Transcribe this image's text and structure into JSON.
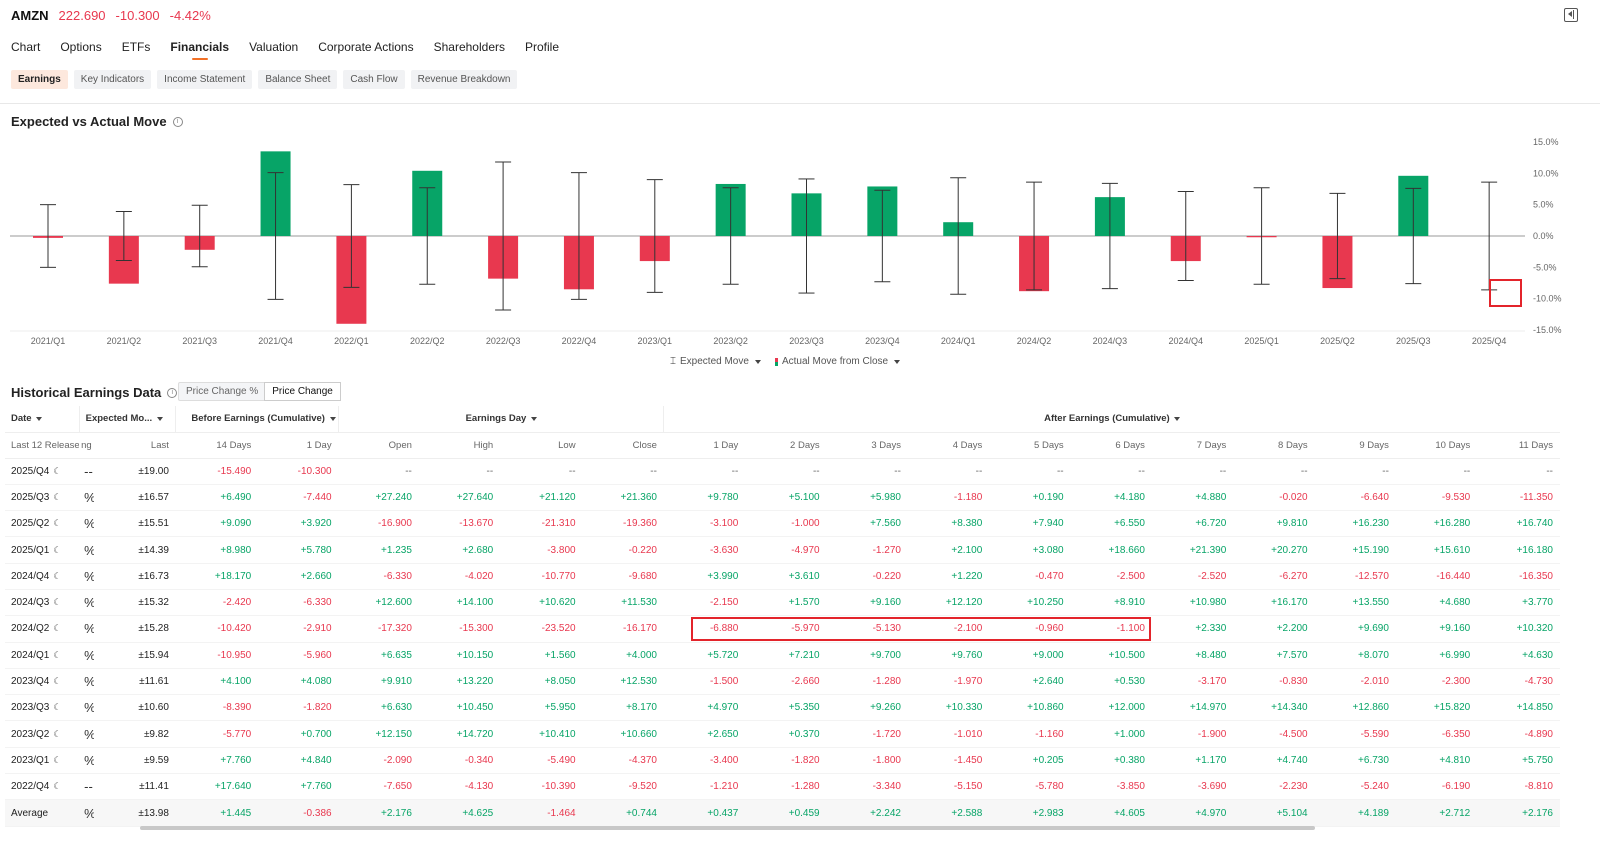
{
  "header": {
    "ticker": "AMZN",
    "price": "222.690",
    "change": "-10.300",
    "change_pct": "-4.42%"
  },
  "nav": {
    "tabs": [
      {
        "label": "Chart"
      },
      {
        "label": "Options"
      },
      {
        "label": "ETFs"
      },
      {
        "label": "Financials",
        "active": true
      },
      {
        "label": "Valuation"
      },
      {
        "label": "Corporate Actions"
      },
      {
        "label": "Shareholders"
      },
      {
        "label": "Profile"
      }
    ]
  },
  "subnav": {
    "tabs": [
      {
        "label": "Earnings",
        "active": true
      },
      {
        "label": "Key Indicators"
      },
      {
        "label": "Income Statement"
      },
      {
        "label": "Balance Sheet"
      },
      {
        "label": "Cash Flow"
      },
      {
        "label": "Revenue Breakdown"
      }
    ]
  },
  "chart_section": {
    "title": "Expected vs Actual Move"
  },
  "legend": {
    "expected": "Expected Move",
    "actual": "Actual Move from Close"
  },
  "colors": {
    "up": "#07a467",
    "down": "#e8384f",
    "accent": "#f27026",
    "highlight": "#e3242b"
  },
  "chart_data": {
    "type": "bar",
    "categories": [
      "2021/Q1",
      "2021/Q2",
      "2021/Q3",
      "2021/Q4",
      "2022/Q1",
      "2022/Q2",
      "2022/Q3",
      "2022/Q4",
      "2023/Q1",
      "2023/Q2",
      "2023/Q3",
      "2023/Q4",
      "2024/Q1",
      "2024/Q2",
      "2024/Q3",
      "2024/Q4",
      "2025/Q1",
      "2025/Q2",
      "2025/Q3",
      "2025/Q4"
    ],
    "series": [
      {
        "name": "Actual Move from Close",
        "values": [
          -0.3,
          -7.6,
          -2.2,
          13.5,
          -14.0,
          10.4,
          -6.8,
          -8.5,
          -4.0,
          8.3,
          6.8,
          7.9,
          2.2,
          -8.8,
          6.2,
          -4.0,
          -0.2,
          -8.3,
          9.6,
          null
        ]
      },
      {
        "name": "Expected Move",
        "values": [
          5.0,
          3.9,
          4.9,
          10.1,
          8.2,
          7.7,
          11.8,
          10.1,
          9.0,
          7.7,
          9.1,
          7.3,
          9.3,
          8.6,
          8.4,
          7.1,
          7.7,
          6.8,
          7.6,
          8.6
        ]
      }
    ],
    "y_ticks": [
      "15.0%",
      "10.0%",
      "5.0%",
      "0.0%",
      "-5.0%",
      "-10.0%",
      "-15.0%"
    ],
    "ylim": [
      -15,
      15
    ]
  },
  "table_section": {
    "title": "Historical Earnings Data",
    "toggle": [
      "Price Change %",
      "Price Change"
    ],
    "group_headers": {
      "date": "Date",
      "expected": "Expected Mo...",
      "before": "Before Earnings (Cumulative)",
      "earnings_day": "Earnings Day",
      "after": "After Earnings (Cumulative)"
    },
    "columns": [
      "Last 12 Releases",
      "ng",
      "Last",
      "14 Days",
      "1 Day",
      "Open",
      "High",
      "Low",
      "Close",
      "1 Day",
      "2 Days",
      "3 Days",
      "4 Days",
      "5 Days",
      "6 Days",
      "7 Days",
      "8 Days",
      "9 Days",
      "10 Days",
      "11 Days"
    ],
    "rows": [
      [
        "2025/Q4",
        "--",
        "±19.00",
        "-15.490",
        "-10.300",
        "--",
        "--",
        "--",
        "--",
        "--",
        "--",
        "--",
        "--",
        "--",
        "--",
        "--",
        "--",
        "--",
        "--",
        "--"
      ],
      [
        "2025/Q3",
        "%",
        "±16.57",
        "+6.490",
        "-7.440",
        "+27.240",
        "+27.640",
        "+21.120",
        "+21.360",
        "+9.780",
        "+5.100",
        "+5.980",
        "-1.180",
        "+0.190",
        "+4.180",
        "+4.880",
        "-0.020",
        "-6.640",
        "-9.530",
        "-11.350"
      ],
      [
        "2025/Q2",
        "%",
        "±15.51",
        "+9.090",
        "+3.920",
        "-16.900",
        "-13.670",
        "-21.310",
        "-19.360",
        "-3.100",
        "-1.000",
        "+7.560",
        "+8.380",
        "+7.940",
        "+6.550",
        "+6.720",
        "+9.810",
        "+16.230",
        "+16.280",
        "+16.740"
      ],
      [
        "2025/Q1",
        "%",
        "±14.39",
        "+8.980",
        "+5.780",
        "+1.235",
        "+2.680",
        "-3.800",
        "-0.220",
        "-3.630",
        "-4.970",
        "-1.270",
        "+2.100",
        "+3.080",
        "+18.660",
        "+21.390",
        "+20.270",
        "+15.190",
        "+15.610",
        "+16.180"
      ],
      [
        "2024/Q4",
        "%",
        "±16.73",
        "+18.170",
        "+2.660",
        "-6.330",
        "-4.020",
        "-10.770",
        "-9.680",
        "+3.990",
        "+3.610",
        "-0.220",
        "+1.220",
        "-0.470",
        "-2.500",
        "-2.520",
        "-6.270",
        "-12.570",
        "-16.440",
        "-16.350"
      ],
      [
        "2024/Q3",
        "%",
        "±15.32",
        "-2.420",
        "-6.330",
        "+12.600",
        "+14.100",
        "+10.620",
        "+11.530",
        "-2.150",
        "+1.570",
        "+9.160",
        "+12.120",
        "+10.250",
        "+8.910",
        "+10.980",
        "+16.170",
        "+13.550",
        "+4.680",
        "+3.770"
      ],
      [
        "2024/Q2",
        "%",
        "±15.28",
        "-10.420",
        "-2.910",
        "-17.320",
        "-15.300",
        "-23.520",
        "-16.170",
        "-6.880",
        "-5.970",
        "-5.130",
        "-2.100",
        "-0.960",
        "-1.100",
        "+2.330",
        "+2.200",
        "+9.690",
        "+9.160",
        "+10.320"
      ],
      [
        "2024/Q1",
        "%",
        "±15.94",
        "-10.950",
        "-5.960",
        "+6.635",
        "+10.150",
        "+1.560",
        "+4.000",
        "+5.720",
        "+7.210",
        "+9.700",
        "+9.760",
        "+9.000",
        "+10.500",
        "+8.480",
        "+7.570",
        "+8.070",
        "+6.990",
        "+4.630"
      ],
      [
        "2023/Q4",
        "%",
        "±11.61",
        "+4.100",
        "+4.080",
        "+9.910",
        "+13.220",
        "+8.050",
        "+12.530",
        "-1.500",
        "-2.660",
        "-1.280",
        "-1.970",
        "+2.640",
        "+0.530",
        "-3.170",
        "-0.830",
        "-2.010",
        "-2.300",
        "-4.730"
      ],
      [
        "2023/Q3",
        "%",
        "±10.60",
        "-8.390",
        "-1.820",
        "+6.630",
        "+10.450",
        "+5.950",
        "+8.170",
        "+4.970",
        "+5.350",
        "+9.260",
        "+10.330",
        "+10.860",
        "+12.000",
        "+14.970",
        "+14.340",
        "+12.860",
        "+15.820",
        "+14.850"
      ],
      [
        "2023/Q2",
        "%",
        "±9.82",
        "-5.770",
        "+0.700",
        "+12.150",
        "+14.720",
        "+10.410",
        "+10.660",
        "+2.650",
        "+0.370",
        "-1.720",
        "-1.010",
        "-1.160",
        "+1.000",
        "-1.900",
        "-4.500",
        "-5.590",
        "-6.350",
        "-4.890"
      ],
      [
        "2023/Q1",
        "%",
        "±9.59",
        "+7.760",
        "+4.840",
        "-2.090",
        "-0.340",
        "-5.490",
        "-4.370",
        "-3.400",
        "-1.820",
        "-1.800",
        "-1.450",
        "+0.205",
        "+0.380",
        "+1.170",
        "+4.740",
        "+6.730",
        "+4.810",
        "+5.750"
      ],
      [
        "2022/Q4",
        "--",
        "±11.41",
        "+17.640",
        "+7.760",
        "-7.650",
        "-4.130",
        "-10.390",
        "-9.520",
        "-1.210",
        "-1.280",
        "-3.340",
        "-5.150",
        "-5.780",
        "-3.850",
        "-3.690",
        "-2.230",
        "-5.240",
        "-6.190",
        "-8.810"
      ]
    ],
    "average": [
      "Average",
      "%",
      "±13.98",
      "+1.445",
      "-0.386",
      "+2.176",
      "+4.625",
      "-1.464",
      "+0.744",
      "+0.437",
      "+0.459",
      "+2.242",
      "+2.588",
      "+2.983",
      "+4.605",
      "+4.970",
      "+5.104",
      "+4.189",
      "+2.712",
      "+2.176"
    ]
  }
}
